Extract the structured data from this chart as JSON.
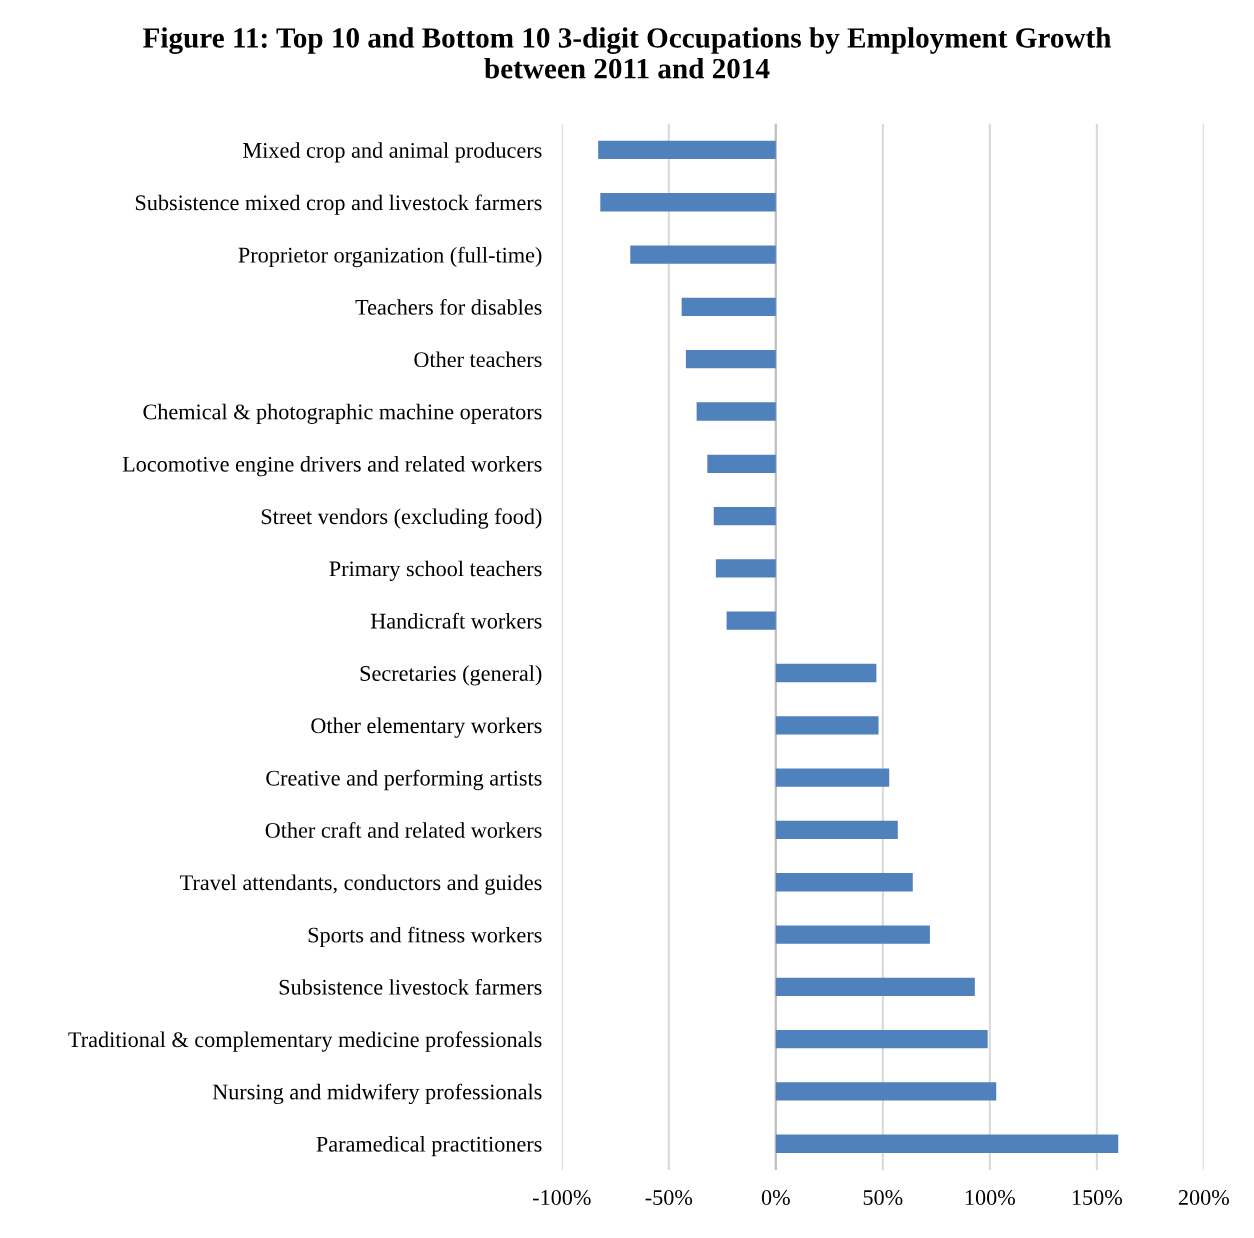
{
  "chart_data": {
    "type": "bar",
    "orientation": "horizontal",
    "title": "Figure 11: Top 10 and Bottom 10 3-digit Occupations by Employment Growth\nbetween 2011 and 2014",
    "categories": [
      "Mixed crop and animal producers",
      "Subsistence mixed crop and livestock farmers",
      "Proprietor organization (full-time)",
      "Teachers for disables",
      "Other teachers",
      "Chemical & photographic machine operators",
      "Locomotive engine drivers and related workers",
      "Street vendors (excluding food)",
      "Primary school teachers",
      "Handicraft workers",
      "Secretaries (general)",
      "Other elementary workers",
      "Creative and performing artists",
      "Other craft and related workers",
      "Travel attendants, conductors and guides",
      "Sports and fitness workers",
      "Subsistence livestock farmers",
      "Traditional & complementary medicine professionals",
      "Nursing and midwifery professionals",
      "Paramedical practitioners"
    ],
    "values": [
      -83,
      -82,
      -68,
      -44,
      -42,
      -37,
      -32,
      -29,
      -28,
      -23,
      47,
      48,
      53,
      57,
      64,
      72,
      93,
      99,
      103,
      160
    ],
    "color": "#4f81bd",
    "xlim": [
      -100,
      200
    ],
    "xticks": [
      {
        "value": -100,
        "label": "-100%"
      },
      {
        "value": -50,
        "label": "-50%"
      },
      {
        "value": 0,
        "label": "0%"
      },
      {
        "value": 50,
        "label": "50%"
      },
      {
        "value": 100,
        "label": "100%"
      },
      {
        "value": 150,
        "label": "150%"
      },
      {
        "value": 200,
        "label": "200%"
      }
    ],
    "grid": "x"
  }
}
